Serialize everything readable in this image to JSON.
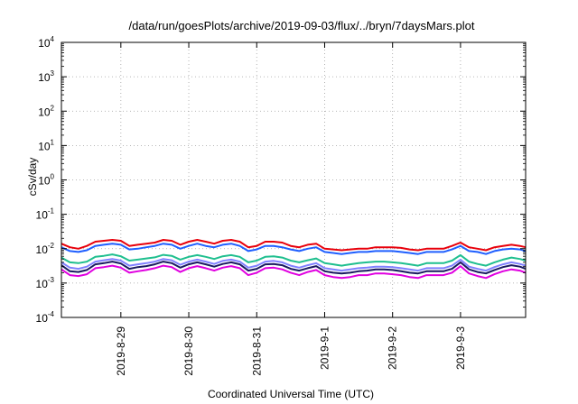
{
  "chart_data": {
    "type": "line",
    "title": "/data/run/goesPlots/archive/2019-09-03/flux/../bryn/7daysMars.plot",
    "xlabel": "Coordinated Universal Time (UTC)",
    "ylabel": "cSv/day",
    "y_scale": "log",
    "ylim": [
      0.0001,
      10000
    ],
    "y_ticks": [
      {
        "value": 0.0001,
        "base": "10",
        "exp": "-4"
      },
      {
        "value": 0.001,
        "base": "10",
        "exp": "-3"
      },
      {
        "value": 0.01,
        "base": "10",
        "exp": "-2"
      },
      {
        "value": 0.1,
        "base": "10",
        "exp": "-1"
      },
      {
        "value": 1,
        "base": "10",
        "exp": "0"
      },
      {
        "value": 10,
        "base": "10",
        "exp": "1"
      },
      {
        "value": 100,
        "base": "10",
        "exp": "2"
      },
      {
        "value": 1000,
        "base": "10",
        "exp": "3"
      },
      {
        "value": 10000,
        "base": "10",
        "exp": "4"
      }
    ],
    "xlim": [
      "2019-08-28T03:00",
      "2019-09-03T23:00"
    ],
    "x_ticks": [
      "2019-8-29",
      "2019-8-30",
      "2019-8-31",
      "2019-9-1",
      "2019-9-2",
      "2019-9-3"
    ],
    "x_tick_values": [
      "2019-08-29T00:00",
      "2019-08-30T00:00",
      "2019-08-31T00:00",
      "2019-09-01T00:00",
      "2019-09-02T00:00",
      "2019-09-03T00:00"
    ],
    "grid": true,
    "x": [
      "2019-08-28T03:00",
      "2019-08-28T06:00",
      "2019-08-28T09:00",
      "2019-08-28T12:00",
      "2019-08-28T15:00",
      "2019-08-28T18:00",
      "2019-08-28T21:00",
      "2019-08-29T00:00",
      "2019-08-29T03:00",
      "2019-08-29T06:00",
      "2019-08-29T09:00",
      "2019-08-29T12:00",
      "2019-08-29T15:00",
      "2019-08-29T18:00",
      "2019-08-29T21:00",
      "2019-08-30T00:00",
      "2019-08-30T03:00",
      "2019-08-30T06:00",
      "2019-08-30T09:00",
      "2019-08-30T12:00",
      "2019-08-30T15:00",
      "2019-08-30T18:00",
      "2019-08-30T21:00",
      "2019-08-31T00:00",
      "2019-08-31T03:00",
      "2019-08-31T06:00",
      "2019-08-31T09:00",
      "2019-08-31T12:00",
      "2019-08-31T15:00",
      "2019-08-31T18:00",
      "2019-08-31T21:00",
      "2019-09-01T00:00",
      "2019-09-01T03:00",
      "2019-09-01T06:00",
      "2019-09-01T09:00",
      "2019-09-01T12:00",
      "2019-09-01T15:00",
      "2019-09-01T18:00",
      "2019-09-01T21:00",
      "2019-09-02T00:00",
      "2019-09-02T03:00",
      "2019-09-02T06:00",
      "2019-09-02T09:00",
      "2019-09-02T12:00",
      "2019-09-02T15:00",
      "2019-09-02T18:00",
      "2019-09-02T21:00",
      "2019-09-03T00:00",
      "2019-09-03T03:00",
      "2019-09-03T06:00",
      "2019-09-03T09:00",
      "2019-09-03T12:00",
      "2019-09-03T15:00",
      "2019-09-03T18:00",
      "2019-09-03T21:00",
      "2019-09-03T23:00"
    ],
    "series": [
      {
        "color": "#e8000b",
        "values": [
          0.014,
          0.011,
          0.01,
          0.012,
          0.016,
          0.017,
          0.018,
          0.017,
          0.012,
          0.013,
          0.014,
          0.015,
          0.018,
          0.017,
          0.013,
          0.016,
          0.018,
          0.016,
          0.014,
          0.017,
          0.018,
          0.016,
          0.011,
          0.012,
          0.016,
          0.016,
          0.015,
          0.012,
          0.011,
          0.013,
          0.014,
          0.01,
          0.0095,
          0.009,
          0.0095,
          0.01,
          0.01,
          0.011,
          0.011,
          0.011,
          0.0105,
          0.0095,
          0.009,
          0.01,
          0.01,
          0.01,
          0.012,
          0.015,
          0.011,
          0.01,
          0.009,
          0.011,
          0.012,
          0.013,
          0.012,
          0.011
        ]
      },
      {
        "color": "#1f5fff",
        "values": [
          0.011,
          0.0085,
          0.008,
          0.009,
          0.012,
          0.013,
          0.014,
          0.013,
          0.0095,
          0.01,
          0.011,
          0.012,
          0.014,
          0.013,
          0.01,
          0.012,
          0.014,
          0.012,
          0.011,
          0.013,
          0.014,
          0.012,
          0.0085,
          0.0095,
          0.012,
          0.012,
          0.011,
          0.0095,
          0.0085,
          0.01,
          0.011,
          0.008,
          0.0075,
          0.007,
          0.0075,
          0.008,
          0.008,
          0.0085,
          0.0085,
          0.0085,
          0.008,
          0.0075,
          0.007,
          0.008,
          0.008,
          0.008,
          0.0095,
          0.012,
          0.0085,
          0.008,
          0.007,
          0.0085,
          0.0095,
          0.01,
          0.0095,
          0.0085
        ]
      },
      {
        "color": "#1fbf8f",
        "values": [
          0.0055,
          0.004,
          0.0038,
          0.0042,
          0.0058,
          0.0062,
          0.0068,
          0.006,
          0.0045,
          0.0048,
          0.0052,
          0.0056,
          0.0066,
          0.0062,
          0.0048,
          0.0058,
          0.0065,
          0.0058,
          0.005,
          0.006,
          0.0065,
          0.0058,
          0.004,
          0.0045,
          0.0058,
          0.006,
          0.0055,
          0.0045,
          0.004,
          0.0046,
          0.0052,
          0.0038,
          0.0035,
          0.0032,
          0.0035,
          0.0038,
          0.004,
          0.0042,
          0.0042,
          0.004,
          0.0038,
          0.0035,
          0.0032,
          0.0038,
          0.0038,
          0.0038,
          0.0045,
          0.0065,
          0.0042,
          0.0036,
          0.0032,
          0.004,
          0.0048,
          0.0055,
          0.005,
          0.0045
        ]
      },
      {
        "color": "#8080ff",
        "values": [
          0.004,
          0.0028,
          0.0026,
          0.003,
          0.0042,
          0.0046,
          0.005,
          0.0045,
          0.0032,
          0.0035,
          0.0038,
          0.0042,
          0.005,
          0.0046,
          0.0034,
          0.0042,
          0.0048,
          0.0042,
          0.0036,
          0.0044,
          0.0048,
          0.0042,
          0.0028,
          0.0032,
          0.0042,
          0.0044,
          0.004,
          0.0032,
          0.0028,
          0.0033,
          0.0038,
          0.0027,
          0.0025,
          0.0023,
          0.0025,
          0.0027,
          0.0028,
          0.003,
          0.003,
          0.0029,
          0.0027,
          0.0025,
          0.0023,
          0.0027,
          0.0027,
          0.0027,
          0.0032,
          0.0048,
          0.003,
          0.0026,
          0.0023,
          0.0029,
          0.0035,
          0.004,
          0.0036,
          0.0032
        ]
      },
      {
        "color": "#1a1a60",
        "values": [
          0.0033,
          0.0022,
          0.0021,
          0.0024,
          0.0035,
          0.0038,
          0.0042,
          0.0037,
          0.0026,
          0.0029,
          0.0031,
          0.0035,
          0.0042,
          0.0038,
          0.0028,
          0.0035,
          0.004,
          0.0035,
          0.003,
          0.0036,
          0.004,
          0.0035,
          0.0023,
          0.0026,
          0.0035,
          0.0036,
          0.0033,
          0.0026,
          0.0023,
          0.0027,
          0.0031,
          0.0022,
          0.002,
          0.0019,
          0.002,
          0.0022,
          0.0023,
          0.0025,
          0.0025,
          0.0024,
          0.0022,
          0.002,
          0.0019,
          0.0022,
          0.0022,
          0.0022,
          0.0026,
          0.004,
          0.0025,
          0.0021,
          0.0019,
          0.0024,
          0.0029,
          0.0033,
          0.003,
          0.0026
        ]
      },
      {
        "color": "#e000e0",
        "values": [
          0.0025,
          0.0017,
          0.0016,
          0.0018,
          0.0027,
          0.0029,
          0.0032,
          0.0028,
          0.002,
          0.0022,
          0.0024,
          0.0027,
          0.0032,
          0.0029,
          0.0021,
          0.0027,
          0.0031,
          0.0027,
          0.0023,
          0.0028,
          0.0031,
          0.0027,
          0.0017,
          0.002,
          0.0027,
          0.0028,
          0.0025,
          0.002,
          0.0017,
          0.0021,
          0.0024,
          0.0017,
          0.0015,
          0.0014,
          0.0015,
          0.0017,
          0.0017,
          0.0019,
          0.0019,
          0.0018,
          0.0017,
          0.0015,
          0.0014,
          0.0017,
          0.0017,
          0.0017,
          0.002,
          0.0031,
          0.0019,
          0.0016,
          0.0014,
          0.0018,
          0.0022,
          0.0025,
          0.0023,
          0.002
        ]
      }
    ]
  }
}
